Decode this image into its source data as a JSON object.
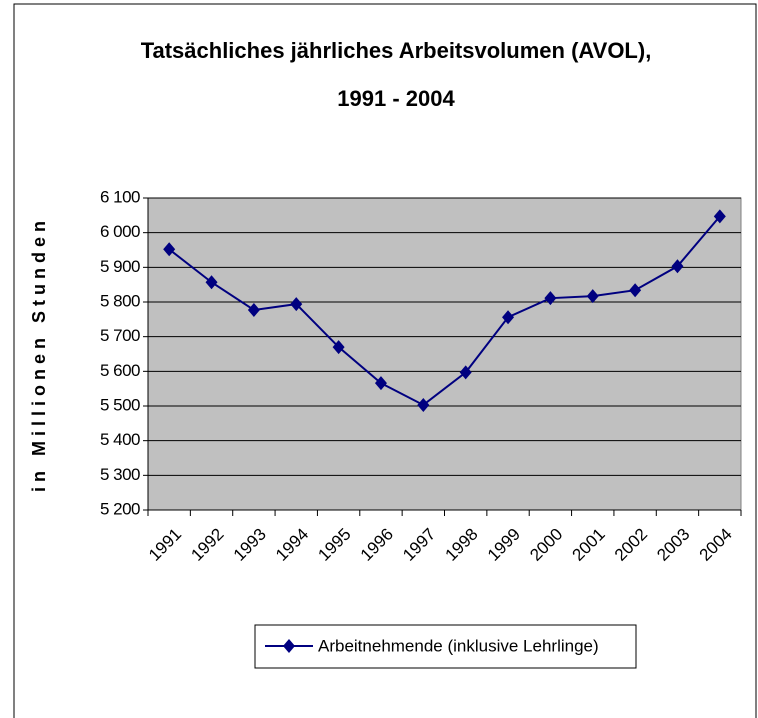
{
  "chart_data": {
    "type": "line",
    "title": [
      "Tatsächliches jährliches Arbeitsvolumen (AVOL),",
      "1991 - 2004"
    ],
    "y_label": "in Millionen Stunden",
    "categories": [
      "1991",
      "1992",
      "1993",
      "1994",
      "1995",
      "1996",
      "1997",
      "1998",
      "1999",
      "2000",
      "2001",
      "2002",
      "2003",
      "2004"
    ],
    "series": [
      {
        "name": "Arbeitnehmende (inklusive Lehrlinge)",
        "color": "#000080",
        "values": [
          5952,
          5857,
          5777,
          5794,
          5670,
          5566,
          5503,
          5597,
          5756,
          5811,
          5817,
          5834,
          5903,
          6047
        ]
      }
    ],
    "ylim": [
      5200,
      6100
    ],
    "yticks": [
      {
        "value": 5200,
        "label": "5 200"
      },
      {
        "value": 5300,
        "label": "5 300"
      },
      {
        "value": 5400,
        "label": "5 400"
      },
      {
        "value": 5500,
        "label": "5 500"
      },
      {
        "value": 5600,
        "label": "5 600"
      },
      {
        "value": 5700,
        "label": "5 700"
      },
      {
        "value": 5800,
        "label": "5 800"
      },
      {
        "value": 5900,
        "label": "5 900"
      },
      {
        "value": 6000,
        "label": "6 000"
      },
      {
        "value": 6100,
        "label": "6 100"
      }
    ],
    "grid": true,
    "legend": "bottom"
  }
}
